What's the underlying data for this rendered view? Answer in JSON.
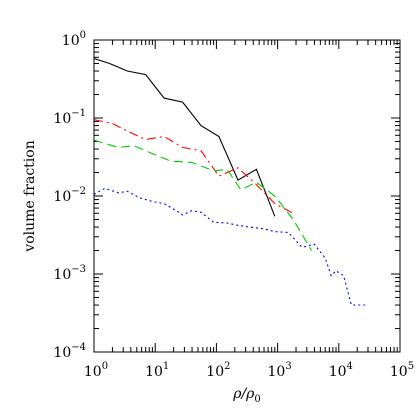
{
  "chart_data": {
    "type": "line",
    "xlabel": "ρ/ρ",
    "xlabel_sub": "0",
    "ylabel": "volume fraction",
    "xscale": "log",
    "yscale": "log",
    "xlim": [
      1,
      100000
    ],
    "ylim": [
      0.0001,
      1
    ],
    "x_ticks": [
      {
        "base": "10",
        "exp": "0",
        "value": 1
      },
      {
        "base": "10",
        "exp": "1",
        "value": 10
      },
      {
        "base": "10",
        "exp": "2",
        "value": 100
      },
      {
        "base": "10",
        "exp": "3",
        "value": 1000
      },
      {
        "base": "10",
        "exp": "4",
        "value": 10000
      },
      {
        "base": "10",
        "exp": "5",
        "value": 100000
      }
    ],
    "y_ticks": [
      {
        "base": "10",
        "exp": "0",
        "value": 1
      },
      {
        "base": "10",
        "exp": "−1",
        "value": 0.1
      },
      {
        "base": "10",
        "exp": "−2",
        "value": 0.01
      },
      {
        "base": "10",
        "exp": "−3",
        "value": 0.001
      },
      {
        "base": "10",
        "exp": "−4",
        "value": 0.0001
      }
    ],
    "grid": false,
    "legend": "none",
    "series": [
      {
        "color": "#000000",
        "dash": "solid",
        "x": [
          1,
          1.8,
          3.5,
          7,
          14,
          28,
          56,
          110,
          225,
          450,
          900
        ],
        "y": [
          0.58,
          0.5,
          0.4,
          0.36,
          0.18,
          0.16,
          0.08,
          0.058,
          0.016,
          0.022,
          0.0055
        ]
      },
      {
        "color": "#ff0000",
        "dash": "dashdot",
        "x": [
          1,
          2,
          3.5,
          7,
          14,
          28,
          56,
          110,
          225,
          450,
          900,
          1800
        ],
        "y": [
          0.095,
          0.085,
          0.068,
          0.053,
          0.058,
          0.042,
          0.038,
          0.018,
          0.023,
          0.014,
          0.008,
          0.006
        ]
      },
      {
        "color": "#00cc00",
        "dash": "dash",
        "x": [
          1,
          2.5,
          4.5,
          9,
          18,
          40,
          90,
          150,
          250,
          450,
          900,
          1800,
          3600
        ],
        "y": [
          0.052,
          0.042,
          0.044,
          0.035,
          0.028,
          0.027,
          0.021,
          0.022,
          0.012,
          0.015,
          0.01,
          0.005,
          0.002
        ]
      },
      {
        "color": "#0000ff",
        "dash": "dot",
        "x": [
          1,
          1.5,
          2.5,
          3.5,
          5.5,
          9,
          14,
          22,
          28,
          40,
          56,
          90,
          150,
          225,
          350,
          600,
          900,
          1500,
          2500,
          4000,
          6000,
          7500,
          9000,
          12000,
          16000,
          27000
        ],
        "y": [
          0.0105,
          0.0125,
          0.011,
          0.0115,
          0.0095,
          0.0085,
          0.008,
          0.0065,
          0.0057,
          0.0065,
          0.0062,
          0.0046,
          0.0045,
          0.0042,
          0.004,
          0.0038,
          0.0035,
          0.0034,
          0.0022,
          0.0024,
          0.0016,
          0.00095,
          0.0011,
          0.00095,
          0.0004,
          0.0004
        ]
      }
    ]
  }
}
